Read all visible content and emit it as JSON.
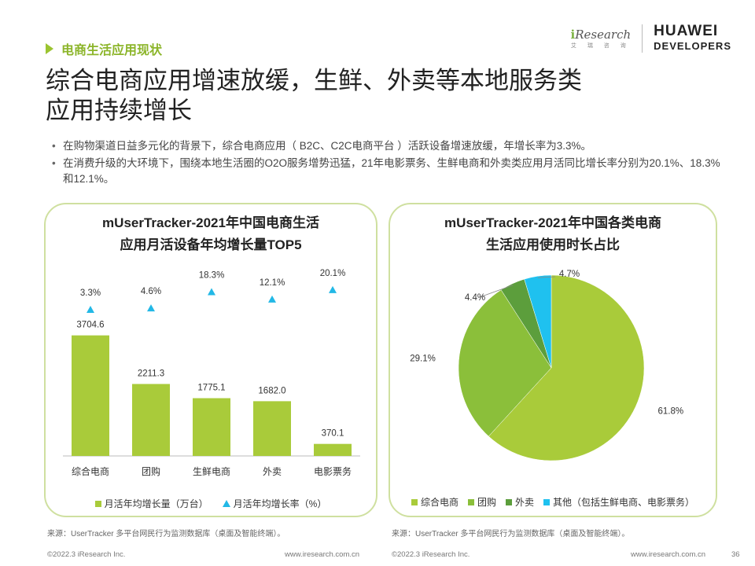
{
  "section_tag": "电商生活应用现状",
  "title_line1": "综合电商应用增速放缓，生鲜、外卖等本地服务类",
  "title_line2": "应用持续增长",
  "logos": {
    "iresearch_i": "i",
    "iresearch_name": "Research",
    "iresearch_sub": "艾 瑞 咨 询",
    "huawei_line1": "HUAWEI",
    "huawei_line2": "DEVELOPERS"
  },
  "bullets": [
    "在购物渠道日益多元化的背景下，综合电商应用（ B2C、C2C电商平台 ）活跃设备增速放缓，年增长率为3.3%。",
    "在消费升级的大环境下，围绕本地生活圈的O2O服务增势迅猛，21年电影票务、生鲜电商和外卖类应用月活同比增长率分别为20.1%、18.3%和12.1%。"
  ],
  "chart_data": [
    {
      "type": "bar",
      "title_line1": "mUserTracker-2021年中国电商生活",
      "title_line2": "应用月活设备年均增长量TOP5",
      "categories": [
        "综合电商",
        "团购",
        "生鲜电商",
        "外卖",
        "电影票务"
      ],
      "series": [
        {
          "name": "月活年均增长量（万台）",
          "values": [
            3704.6,
            2211.3,
            1775.1,
            1682.0,
            370.1
          ],
          "labels": [
            "3704.6",
            "2211.3",
            "1775.1",
            "1682.0",
            "370.1"
          ],
          "color": "#a9cb3a"
        },
        {
          "name": "月活年均增长率（%）",
          "values": [
            3.3,
            4.6,
            18.3,
            12.1,
            20.1
          ],
          "labels": [
            "3.3%",
            "4.6%",
            "18.3%",
            "12.1%",
            "20.1%"
          ],
          "color": "#22b8e6"
        }
      ],
      "ylim": [
        0,
        4200
      ],
      "rate_ylim": [
        0,
        30
      ]
    },
    {
      "type": "pie",
      "title_line1": "mUserTracker-2021年中国各类电商",
      "title_line2": "生活应用使用时长占比",
      "slices": [
        {
          "name": "综合电商",
          "value": 61.8,
          "label": "61.8%",
          "color": "#a9cb3a"
        },
        {
          "name": "团购",
          "value": 29.1,
          "label": "29.1%",
          "color": "#8bbf3a"
        },
        {
          "name": "外卖",
          "value": 4.4,
          "label": "4.4%",
          "color": "#5c9e3c"
        },
        {
          "name": "其他（包括生鲜电商、电影票务）",
          "value": 4.7,
          "label": "4.7%",
          "color": "#1fc1ef"
        }
      ]
    }
  ],
  "source_left": "来源：UserTracker 多平台网民行为监测数据库（桌面及智能终端）。",
  "source_right": "来源：UserTracker 多平台网民行为监测数据库（桌面及智能终端）。",
  "footer": {
    "copyright_left": "©2022.3 iResearch Inc.",
    "url_left": "www.iresearch.com.cn",
    "copyright_right": "©2022.3 iResearch Inc.",
    "url_right": "www.iresearch.com.cn",
    "page_number": "36"
  }
}
